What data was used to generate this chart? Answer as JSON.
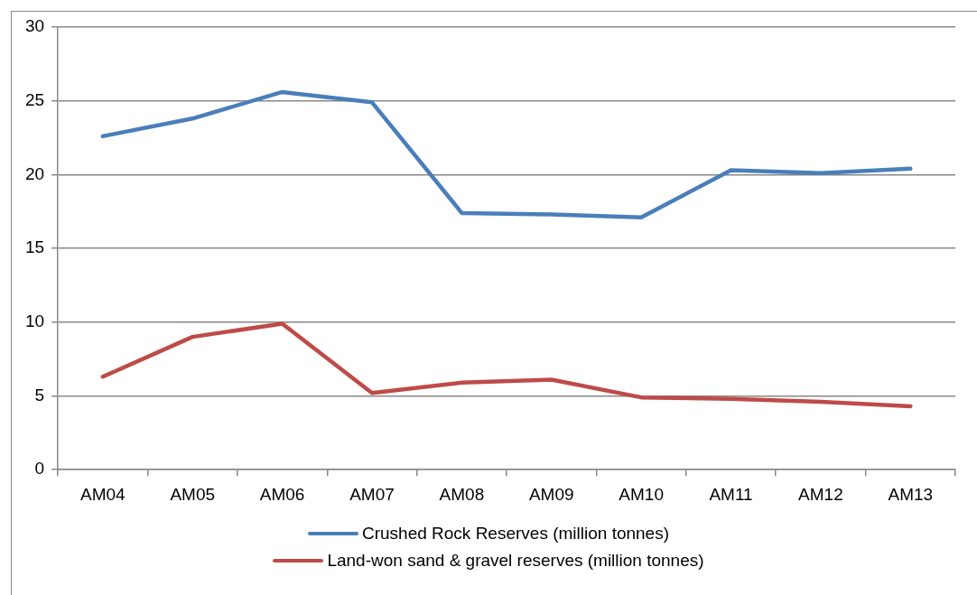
{
  "chart_data": {
    "type": "line",
    "categories": [
      "AM04",
      "AM05",
      "AM06",
      "AM07",
      "AM08",
      "AM09",
      "AM10",
      "AM11",
      "AM12",
      "AM13"
    ],
    "series": [
      {
        "name": "Crushed Rock Reserves (million tonnes)",
        "color": "#4a7ebb",
        "values": [
          22.6,
          23.8,
          25.6,
          24.9,
          17.4,
          17.3,
          17.1,
          20.3,
          20.1,
          20.4
        ]
      },
      {
        "name": "Land-won sand & gravel reserves (million tonnes)",
        "color": "#be4b48",
        "values": [
          6.3,
          9.0,
          9.9,
          5.2,
          5.9,
          6.1,
          4.9,
          4.8,
          4.6,
          4.3
        ]
      }
    ],
    "ylim": [
      0,
      30
    ],
    "yticks": [
      0,
      5,
      10,
      15,
      20,
      25,
      30
    ],
    "grid": "y",
    "legend": "bottom",
    "marker": "none",
    "line_style": "solid"
  }
}
